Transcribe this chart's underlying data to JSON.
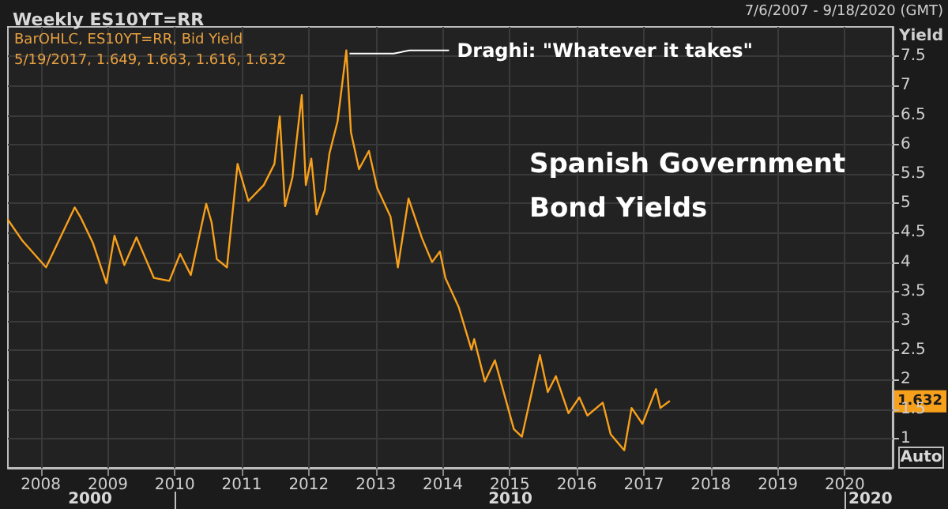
{
  "chart_data": {
    "type": "line",
    "title": "Spanish Government Bond Yields",
    "subtitle": "Weekly ES10YT=RR",
    "ylabel": "Yield",
    "annotations": [
      "7/6/2007 - 9/18/2020 (GMT)",
      "BarOHLC, ES10YT=RR, Bid Yield",
      "5/19/2017, 1.649, 1.663, 1.616, 1.632",
      {
        "text": "Draghi: \"Whatever it takes\"",
        "x": "2012-07-24",
        "y": 7.6
      },
      "1.632",
      "Auto",
      "2000",
      "2010",
      "2020"
    ],
    "x": [
      "2007-07-06",
      "2007-09-24",
      "2008-01-30",
      "2008-07-04",
      "2008-08-04",
      "2008-10-12",
      "2008-12-24",
      "2009-02-06",
      "2009-04-01",
      "2009-06-06",
      "2009-09-09",
      "2009-12-02",
      "2010-01-30",
      "2010-03-29",
      "2010-06-21",
      "2010-07-20",
      "2010-08-18",
      "2010-10-12",
      "2010-12-09",
      "2011-02-06",
      "2011-05-01",
      "2011-06-28",
      "2011-07-27",
      "2011-08-25",
      "2011-10-04",
      "2011-11-24",
      "2011-12-16",
      "2012-01-15",
      "2012-02-13",
      "2012-03-28",
      "2012-04-23",
      "2012-06-06",
      "2012-07-24",
      "2012-08-18",
      "2012-10-01",
      "2012-11-24",
      "2013-01-08",
      "2013-03-22",
      "2013-05-01",
      "2013-06-28",
      "2013-09-09",
      "2013-11-03",
      "2013-12-16",
      "2014-01-15",
      "2014-03-28",
      "2014-06-06",
      "2014-06-21",
      "2014-08-18",
      "2014-10-12",
      "2015-01-23",
      "2015-03-08",
      "2015-05-01",
      "2015-06-14",
      "2015-07-27",
      "2015-09-09",
      "2015-11-17",
      "2016-01-15",
      "2016-02-28",
      "2016-05-22",
      "2016-07-04",
      "2016-09-16",
      "2016-10-26",
      "2016-12-24",
      "2017-03-08",
      "2017-04-01",
      "2017-05-19"
    ],
    "series": [
      {
        "color": "#f7a01c",
        "values": [
          4.72,
          4.36,
          3.91,
          4.93,
          4.77,
          4.32,
          3.64,
          4.45,
          3.95,
          4.42,
          3.73,
          3.68,
          4.14,
          3.78,
          4.99,
          4.68,
          4.05,
          3.91,
          5.67,
          5.04,
          5.31,
          5.67,
          6.48,
          4.95,
          5.44,
          6.84,
          5.31,
          5.76,
          4.81,
          5.22,
          5.85,
          6.39,
          7.6,
          6.21,
          5.58,
          5.89,
          5.26,
          4.77,
          3.91,
          5.08,
          4.41,
          4.0,
          4.18,
          3.73,
          3.24,
          2.51,
          2.69,
          1.97,
          2.33,
          1.16,
          1.03,
          1.79,
          2.42,
          1.79,
          2.06,
          1.43,
          1.7,
          1.39,
          1.61,
          1.07,
          0.8,
          1.52,
          1.25,
          1.84,
          1.52,
          1.632
        ]
      }
    ],
    "xlim": [
      "2007-07-06",
      "2020-09-18"
    ],
    "xticks": [
      {
        "value": "2008-01-01",
        "label": "2008"
      },
      {
        "value": "2009-01-01",
        "label": "2009"
      },
      {
        "value": "2010-01-01",
        "label": "2010"
      },
      {
        "value": "2011-01-01",
        "label": "2011"
      },
      {
        "value": "2012-01-01",
        "label": "2012"
      },
      {
        "value": "2013-01-01",
        "label": "2013"
      },
      {
        "value": "2014-01-01",
        "label": "2014"
      },
      {
        "value": "2015-01-01",
        "label": "2015"
      },
      {
        "value": "2016-01-01",
        "label": "2016"
      },
      {
        "value": "2017-01-01",
        "label": "2017"
      },
      {
        "value": "2018-01-01",
        "label": "2018"
      },
      {
        "value": "2019-01-01",
        "label": "2019"
      },
      {
        "value": "2020-01-01",
        "label": "2020"
      }
    ],
    "ylim": [
      0.5,
      8
    ],
    "yticks": [
      1,
      1.5,
      2,
      2.5,
      3,
      3.5,
      4,
      4.5,
      5,
      5.5,
      6,
      6.5,
      7,
      7.5
    ],
    "grid": true,
    "marker": "none",
    "line_style": "solid"
  }
}
